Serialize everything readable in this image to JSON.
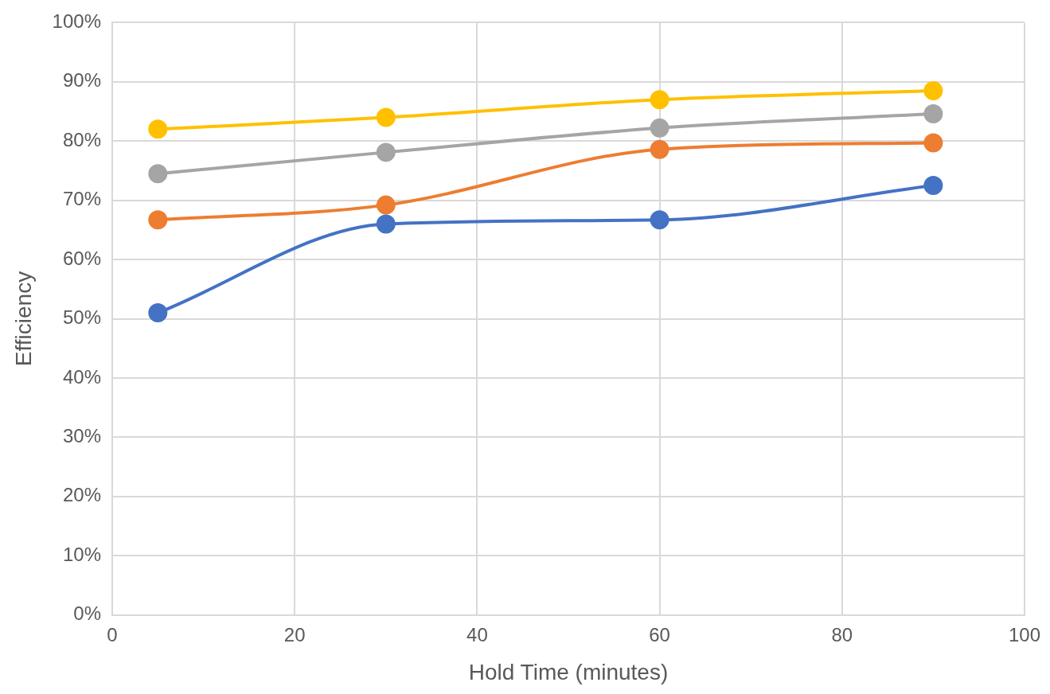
{
  "chart_data": {
    "type": "line",
    "xlabel": "Hold Time (minutes)",
    "ylabel": "Efficiency",
    "x": [
      5,
      30,
      60,
      90
    ],
    "series": [
      {
        "color": "#4472c4",
        "values": [
          51.0,
          66.0,
          66.7,
          72.5
        ]
      },
      {
        "color": "#ed7d31",
        "values": [
          66.7,
          69.2,
          78.6,
          79.7
        ]
      },
      {
        "color": "#a5a5a5",
        "values": [
          74.5,
          78.1,
          82.2,
          84.6
        ]
      },
      {
        "color": "#ffc000",
        "values": [
          82.0,
          84.0,
          87.0,
          88.5
        ]
      }
    ],
    "xlim": [
      0,
      100
    ],
    "xticks": [
      0,
      20,
      40,
      60,
      80,
      100
    ],
    "ylim": [
      0,
      100
    ],
    "yticks": [
      {
        "value": 0,
        "label": "0%"
      },
      {
        "value": 10,
        "label": "10%"
      },
      {
        "value": 20,
        "label": "20%"
      },
      {
        "value": 30,
        "label": "30%"
      },
      {
        "value": 40,
        "label": "40%"
      },
      {
        "value": 50,
        "label": "50%"
      },
      {
        "value": 60,
        "label": "60%"
      },
      {
        "value": 70,
        "label": "70%"
      },
      {
        "value": 80,
        "label": "80%"
      },
      {
        "value": 90,
        "label": "90%"
      },
      {
        "value": 100,
        "label": "100%"
      }
    ],
    "grid": true,
    "legend": false,
    "marker": "circle",
    "line_style": "solid"
  }
}
